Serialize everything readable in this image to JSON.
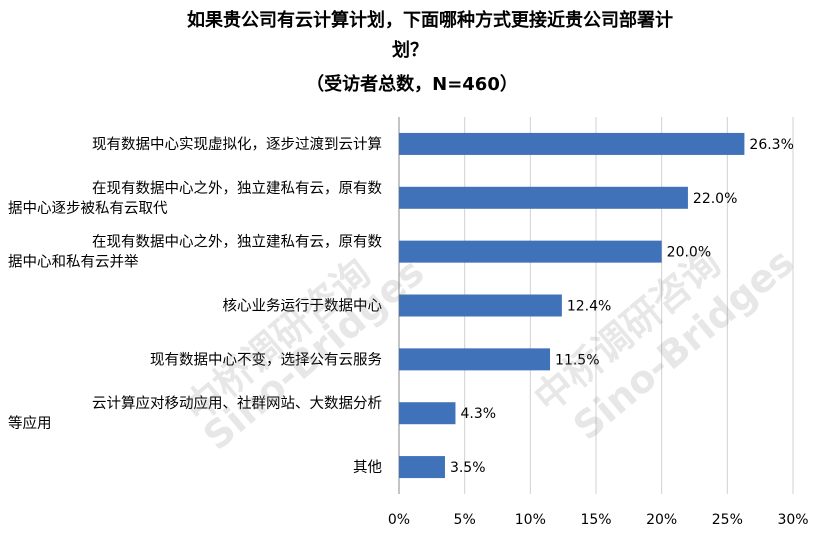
{
  "chart_data": {
    "type": "bar",
    "orientation": "horizontal",
    "title_lines": [
      "如果贵公司有云计算计划，下面哪种方式更接近贵公司部署计",
      "划？",
      "（受访者总数，N=460）"
    ],
    "categories": [
      [
        "现有数据中心实现虚拟化，逐步过渡到云计算"
      ],
      [
        "在现有数据中心之外，独立建私有云，原有数",
        "据中心逐步被私有云取代"
      ],
      [
        "在现有数据中心之外，独立建私有云，原有数",
        "据中心和私有云并举"
      ],
      [
        "核心业务运行于数据中心"
      ],
      [
        "现有数据中心不变，选择公有云服务"
      ],
      [
        "云计算应对移动应用、社群网站、大数据分析",
        "等应用"
      ],
      [
        "其他"
      ]
    ],
    "values": [
      26.3,
      22.0,
      20.0,
      12.4,
      11.5,
      4.3,
      3.5
    ],
    "value_labels": [
      "26.3%",
      "22.0%",
      "20.0%",
      "12.4%",
      "11.5%",
      "4.3%",
      "3.5%"
    ],
    "xlim": [
      0,
      30
    ],
    "xticks": [
      0,
      5,
      10,
      15,
      20,
      25,
      30
    ],
    "xtick_labels": [
      "0%",
      "5%",
      "10%",
      "15%",
      "20%",
      "25%",
      "30%"
    ],
    "grid": "vertical",
    "bar_color": "#3F72B8",
    "grid_color": "#D0D0D0"
  },
  "watermarks": [
    "中桥调研咨询",
    "Sino-Bridges",
    "中桥调研咨询",
    "Sino-Bridges"
  ]
}
